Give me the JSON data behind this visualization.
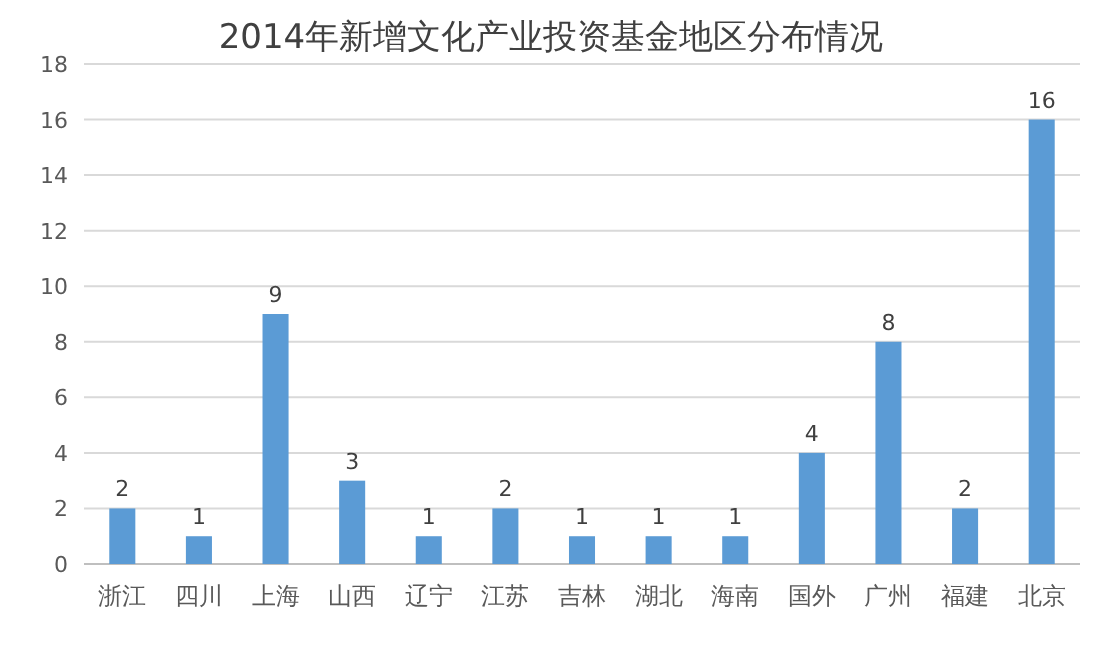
{
  "chart_data": {
    "type": "bar",
    "title": "2014年新增文化产业投资基金地区分布情况",
    "categories": [
      "浙江",
      "四川",
      "上海",
      "山西",
      "辽宁",
      "江苏",
      "吉林",
      "湖北",
      "海南",
      "国外",
      "广州",
      "福建",
      "北京"
    ],
    "values": [
      2,
      1,
      9,
      3,
      1,
      2,
      1,
      1,
      1,
      4,
      8,
      2,
      16
    ],
    "color": "#5b9bd5",
    "ylim": [
      0,
      18
    ],
    "yticks": [
      0,
      2,
      4,
      6,
      8,
      10,
      12,
      14,
      16,
      18
    ],
    "grid": "y",
    "data_labels": true
  }
}
